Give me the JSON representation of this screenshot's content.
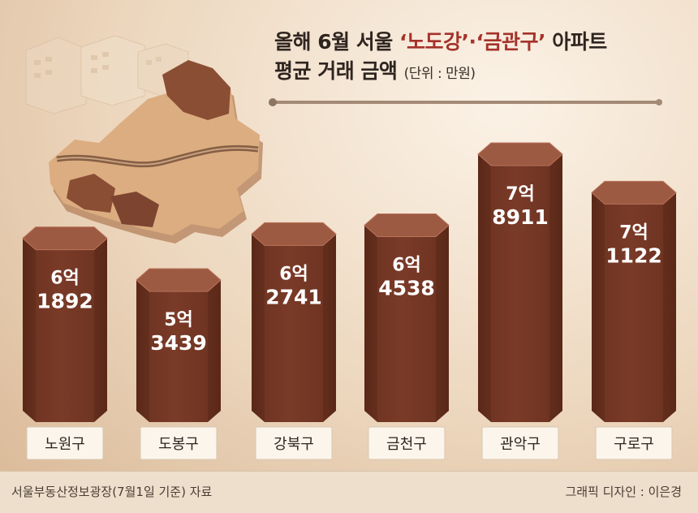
{
  "title": {
    "line1_prefix": "올해 6월 서울 ",
    "line1_highlight": "‘노도강’·‘금관구’",
    "line1_suffix": " 아파트",
    "line2": "평균 거래 금액",
    "unit": "(단위 : 만원)"
  },
  "footer": {
    "source": "서울부동산정보광장(7월1일 기준) 자료",
    "credit": "그래픽 디자인 : 이은경"
  },
  "colors": {
    "highlight": "#a5322a",
    "bar_front": "#7a3b28",
    "bar_side": "#5a2818",
    "bar_top": "#9c5a42"
  },
  "chart_data": {
    "type": "bar",
    "categories": [
      "노원구",
      "도봉구",
      "강북구",
      "금천구",
      "관악구",
      "구로구"
    ],
    "values": [
      61892,
      53439,
      62741,
      64538,
      78911,
      71122
    ],
    "data_labels": [
      [
        "6억",
        "1892"
      ],
      [
        "5억",
        "3439"
      ],
      [
        "6억",
        "2741"
      ],
      [
        "6억",
        "4538"
      ],
      [
        "7억",
        "8911"
      ],
      [
        "7억",
        "1122"
      ]
    ]
  }
}
